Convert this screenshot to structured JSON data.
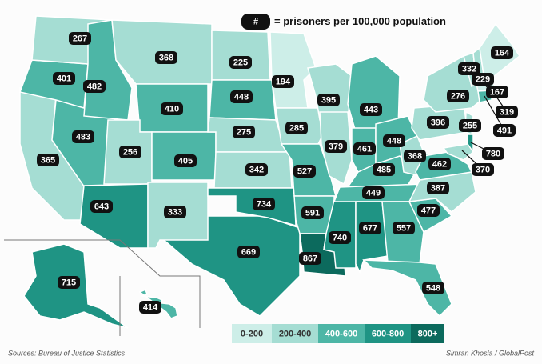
{
  "legend_key": {
    "symbol": "#",
    "text": "= prisoners per 100,000 population"
  },
  "legend": [
    {
      "label": "0-200",
      "color": "#cdeee8"
    },
    {
      "label": "200-400",
      "color": "#a5ddd3"
    },
    {
      "label": "400-600",
      "color": "#4db6a6"
    },
    {
      "label": "600-800",
      "color": "#1f9484"
    },
    {
      "label": "800+",
      "color": "#0c6a5d"
    }
  ],
  "states": [
    {
      "value": 669,
      "color": "#1f9484"
    },
    {
      "value": 365,
      "color": "#a5ddd3"
    },
    {
      "value": 483,
      "color": "#4db6a6"
    },
    {
      "value": 401,
      "color": "#4db6a6"
    },
    {
      "value": 267,
      "color": "#a5ddd3"
    },
    {
      "value": 482,
      "color": "#4db6a6"
    },
    {
      "value": 368,
      "color": "#a5ddd3"
    },
    {
      "value": 410,
      "color": "#4db6a6"
    },
    {
      "value": 256,
      "color": "#a5ddd3"
    },
    {
      "value": 405,
      "color": "#4db6a6"
    },
    {
      "value": 643,
      "color": "#1f9484"
    },
    {
      "value": 333,
      "color": "#a5ddd3"
    },
    {
      "value": 225,
      "color": "#a5ddd3"
    },
    {
      "value": 448,
      "color": "#4db6a6"
    },
    {
      "value": 275,
      "color": "#a5ddd3"
    },
    {
      "value": 342,
      "color": "#a5ddd3"
    },
    {
      "value": 734,
      "color": "#1f9484"
    },
    {
      "value": 194,
      "color": "#cdeee8"
    },
    {
      "value": 285,
      "color": "#a5ddd3"
    },
    {
      "value": 527,
      "color": "#4db6a6"
    },
    {
      "value": 591,
      "color": "#4db6a6"
    },
    {
      "value": 867,
      "color": "#0c6a5d"
    },
    {
      "value": 395,
      "color": "#a5ddd3"
    },
    {
      "value": 379,
      "color": "#a5ddd3"
    },
    {
      "value": 740,
      "color": "#1f9484"
    },
    {
      "value": 443,
      "color": "#4db6a6"
    },
    {
      "value": 461,
      "color": "#4db6a6"
    },
    {
      "value": 448,
      "color": "#4db6a6"
    },
    {
      "value": 485,
      "color": "#4db6a6"
    },
    {
      "value": 449,
      "color": "#4db6a6"
    },
    {
      "value": 677,
      "color": "#1f9484"
    },
    {
      "value": 557,
      "color": "#4db6a6"
    },
    {
      "value": 548,
      "color": "#4db6a6"
    },
    {
      "value": 477,
      "color": "#4db6a6"
    },
    {
      "value": 387,
      "color": "#a5ddd3"
    },
    {
      "value": 368,
      "color": "#a5ddd3"
    },
    {
      "value": 462,
      "color": "#4db6a6"
    },
    {
      "value": 396,
      "color": "#a5ddd3"
    },
    {
      "value": 276,
      "color": "#a5ddd3"
    },
    {
      "value": 332,
      "color": "#a5ddd3"
    },
    {
      "value": 229,
      "color": "#a5ddd3"
    },
    {
      "value": 164,
      "color": "#cdeee8"
    },
    {
      "value": 167,
      "color": "#cdeee8"
    },
    {
      "value": 319,
      "color": "#a5ddd3"
    },
    {
      "value": 491,
      "color": "#4db6a6"
    },
    {
      "value": 255,
      "color": "#a5ddd3"
    },
    {
      "value": 780,
      "color": "#1f9484"
    },
    {
      "value": 370,
      "color": "#a5ddd3"
    },
    {
      "value": 715,
      "color": "#1f9484"
    },
    {
      "value": 414,
      "color": "#4db6a6"
    }
  ],
  "source": "Sources: Bureau of Justice Statistics",
  "credit": "Simran Khosla / GlobalPost"
}
